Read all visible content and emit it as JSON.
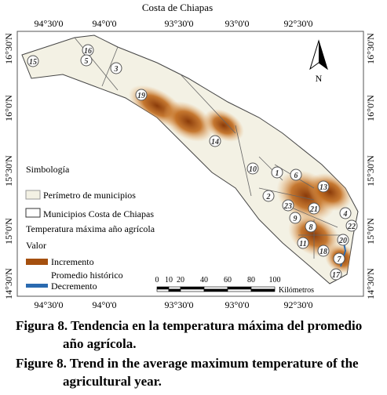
{
  "map": {
    "title": "Costa de Chiapas",
    "lon_labels_top": [
      "94°30'0",
      "94°0'0",
      "93°30'0",
      "93°0'0",
      "92°30'0"
    ],
    "lon_labels_bottom": [
      "94°30'0",
      "94°0'0",
      "93°30'0",
      "93°0'0",
      "92°30'0"
    ],
    "lat_labels_left": [
      "16°30'N",
      "16°0'N",
      "15°30'N",
      "15°0'N",
      "14°30'N"
    ],
    "lat_labels_right": [
      "16°30'N",
      "16°0'N",
      "15°30'N",
      "15°0'N",
      "14°30'N"
    ],
    "municipios": [
      "15",
      "16",
      "5",
      "3",
      "19",
      "14",
      "10",
      "1",
      "6",
      "2",
      "23",
      "13",
      "21",
      "9",
      "8",
      "4",
      "22",
      "11",
      "20",
      "18",
      "7",
      "17"
    ],
    "north": "N",
    "legend": {
      "title": "Simbología",
      "perimetro": "Perímetro de municipios",
      "municipios": "Municipios Costa de Chiapas",
      "variable": "Temperatura máxima año agrícola",
      "valor": "Valor",
      "incremento": "Incremento",
      "promedio": "Promedio histórico",
      "decremento": "Decremento"
    },
    "scale": {
      "ticks": [
        0,
        10,
        20,
        40,
        60,
        80,
        100
      ],
      "unit": "Kilómetros"
    }
  },
  "caption": {
    "es": [
      "Figura 8. Tendencia en la temperatura máxima del promedio",
      "año agrícola."
    ],
    "en": [
      "Figure 8. Trend in the average maximum temperature of the",
      "agricultural year."
    ]
  }
}
